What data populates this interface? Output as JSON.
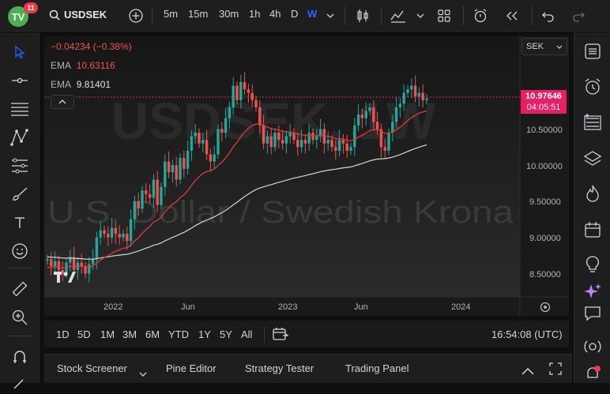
{
  "app": {
    "logo_text": "TV",
    "notification_count": "11",
    "symbol": "USDSEK",
    "intervals": [
      "5m",
      "15m",
      "30m",
      "1h",
      "4h",
      "D",
      "W"
    ],
    "active_interval": "W"
  },
  "legend": {
    "change": "−0.04234 (−0.38%)",
    "ema1_label": "EMA",
    "ema1_value": "10.63116",
    "ema2_label": "EMA",
    "ema2_value": "9.81401"
  },
  "price_scale": {
    "currency": "SEK",
    "ticks": [
      "10.50000",
      "10.00000",
      "9.50000",
      "9.00000",
      "8.50000"
    ],
    "last_price": "10.97646",
    "countdown": "04:05:51"
  },
  "time_axis": {
    "labels": [
      "2022",
      "Jun",
      "2023",
      "Jun",
      "2024"
    ]
  },
  "watermark": {
    "symbol": "USDSEK, 1W",
    "name": "U.S. Dollar / Swedish Krona"
  },
  "ranges": {
    "items": [
      "1D",
      "5D",
      "1M",
      "3M",
      "6M",
      "YTD",
      "1Y",
      "5Y",
      "All"
    ],
    "clock": "16:54:08 (UTC)"
  },
  "panels": {
    "stock_screener": "Stock Screener",
    "pine_editor": "Pine Editor",
    "strategy_tester": "Strategy Tester",
    "trading_panel": "Trading Panel"
  },
  "colors": {
    "up": "#26a69a",
    "down": "#ef5350",
    "ema_fast": "#e53935",
    "ema_slow": "#e0e0e0",
    "accent": "#2962ff",
    "price_tag": "#e91e63"
  },
  "chart_data": {
    "type": "candlestick",
    "x_axis": [
      "2022",
      "Jun",
      "2023",
      "Jun",
      "2024"
    ],
    "y_ticks": [
      10.5,
      10.0,
      9.5,
      9.0,
      8.5
    ],
    "ylim": [
      8.25,
      11.0
    ],
    "interval": "1W",
    "last_close": 10.97646,
    "series": [
      {
        "name": "EMA 10.63116",
        "values_note": "fast EMA"
      },
      {
        "name": "EMA 9.81401",
        "values_note": "slow EMA"
      }
    ],
    "closes": [
      8.75,
      8.65,
      8.72,
      8.6,
      8.55,
      8.7,
      8.78,
      8.6,
      8.7,
      8.65,
      8.55,
      8.68,
      8.75,
      9.05,
      9.15,
      9.1,
      9.05,
      9.18,
      9.1,
      9.05,
      9.1,
      9.0,
      9.3,
      9.55,
      9.45,
      9.7,
      9.65,
      9.6,
      9.85,
      9.5,
      9.75,
      10.1,
      9.95,
      10.05,
      9.85,
      10.15,
      10.0,
      10.25,
      10.45,
      10.5,
      10.35,
      10.4,
      10.2,
      10.1,
      10.2,
      10.55,
      10.5,
      10.7,
      10.85,
      11.15,
      10.95,
      11.2,
      11.1,
      11.05,
      10.95,
      10.85,
      10.6,
      10.35,
      10.45,
      10.3,
      10.5,
      10.4,
      10.35,
      10.45,
      10.5,
      10.4,
      10.3,
      10.4,
      10.35,
      10.5,
      10.4,
      10.45,
      10.55,
      10.35,
      10.4,
      10.3,
      10.25,
      10.4,
      10.35,
      10.25,
      10.3,
      10.6,
      10.75,
      10.7,
      10.8,
      10.85,
      10.65,
      10.55,
      10.3,
      10.25,
      10.5,
      10.65,
      10.85,
      10.9,
      11.05,
      11.1,
      11.15,
      11.0,
      11.05,
      10.95,
      10.97
    ]
  }
}
